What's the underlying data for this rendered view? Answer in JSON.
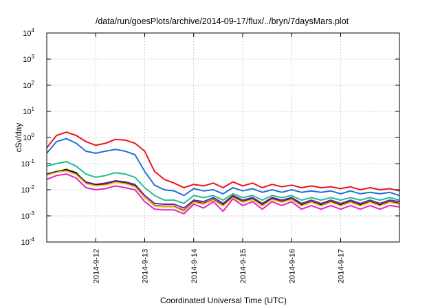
{
  "chart_data": {
    "type": "line",
    "title": "/data/run/goesPlots/archive/2014-09-17/flux/../bryn/7daysMars.plot",
    "xlabel": "Coordinated Universal Time (UTC)",
    "ylabel": "cSv/day",
    "yscale": "log",
    "ylim": [
      0.0001,
      10000
    ],
    "xlim": [
      0,
      7.2
    ],
    "y_ticks": [
      {
        "base": "10",
        "exp": "-4",
        "value": 0.0001
      },
      {
        "base": "10",
        "exp": "-3",
        "value": 0.001
      },
      {
        "base": "10",
        "exp": "-2",
        "value": 0.01
      },
      {
        "base": "10",
        "exp": "-1",
        "value": 0.1
      },
      {
        "base": "10",
        "exp": "0",
        "value": 1
      },
      {
        "base": "10",
        "exp": "1",
        "value": 10
      },
      {
        "base": "10",
        "exp": "2",
        "value": 100
      },
      {
        "base": "10",
        "exp": "3",
        "value": 1000
      },
      {
        "base": "10",
        "exp": "4",
        "value": 10000
      }
    ],
    "x_ticks": [
      {
        "label": "2014-9-12",
        "value": 1
      },
      {
        "label": "2014-9-13",
        "value": 2
      },
      {
        "label": "2014-9-14",
        "value": 3
      },
      {
        "label": "2014-9-15",
        "value": 4
      },
      {
        "label": "2014-9-16",
        "value": 5
      },
      {
        "label": "2014-9-17",
        "value": 6
      }
    ],
    "grid": true,
    "x": [
      0,
      0.2,
      0.4,
      0.6,
      0.8,
      1.0,
      1.2,
      1.4,
      1.6,
      1.8,
      2.0,
      2.2,
      2.4,
      2.6,
      2.8,
      3.0,
      3.2,
      3.4,
      3.6,
      3.8,
      4.0,
      4.2,
      4.4,
      4.6,
      4.8,
      5.0,
      5.2,
      5.4,
      5.6,
      5.8,
      6.0,
      6.2,
      6.4,
      6.6,
      6.8,
      7.0,
      7.2
    ],
    "series": [
      {
        "color": "#e8141b",
        "values": [
          0.4,
          1.2,
          1.6,
          1.2,
          0.7,
          0.5,
          0.6,
          0.85,
          0.8,
          0.6,
          0.3,
          0.05,
          0.025,
          0.018,
          0.012,
          0.016,
          0.014,
          0.018,
          0.012,
          0.02,
          0.014,
          0.018,
          0.012,
          0.016,
          0.013,
          0.015,
          0.012,
          0.014,
          0.012,
          0.013,
          0.011,
          0.013,
          0.01,
          0.012,
          0.01,
          0.011,
          0.009
        ]
      },
      {
        "color": "#1f6fe0",
        "values": [
          0.25,
          0.7,
          0.9,
          0.6,
          0.3,
          0.25,
          0.3,
          0.35,
          0.3,
          0.22,
          0.05,
          0.015,
          0.01,
          0.009,
          0.006,
          0.011,
          0.009,
          0.01,
          0.007,
          0.012,
          0.009,
          0.011,
          0.008,
          0.01,
          0.008,
          0.01,
          0.008,
          0.009,
          0.008,
          0.009,
          0.007,
          0.009,
          0.007,
          0.008,
          0.007,
          0.008,
          0.006
        ]
      },
      {
        "color": "#1bbf8c",
        "values": [
          0.08,
          0.1,
          0.12,
          0.08,
          0.04,
          0.03,
          0.035,
          0.045,
          0.04,
          0.03,
          0.012,
          0.006,
          0.004,
          0.004,
          0.003,
          0.006,
          0.005,
          0.006,
          0.004,
          0.007,
          0.005,
          0.006,
          0.004,
          0.006,
          0.005,
          0.006,
          0.004,
          0.005,
          0.004,
          0.005,
          0.004,
          0.005,
          0.004,
          0.005,
          0.004,
          0.005,
          0.004
        ]
      },
      {
        "color": "#7a1fa6",
        "values": [
          0.04,
          0.05,
          0.055,
          0.04,
          0.02,
          0.016,
          0.018,
          0.022,
          0.02,
          0.016,
          0.006,
          0.003,
          0.0028,
          0.0028,
          0.002,
          0.004,
          0.0035,
          0.005,
          0.003,
          0.006,
          0.004,
          0.005,
          0.003,
          0.005,
          0.004,
          0.005,
          0.003,
          0.004,
          0.003,
          0.004,
          0.003,
          0.004,
          0.003,
          0.004,
          0.003,
          0.004,
          0.0035
        ]
      },
      {
        "color": "#1a1a1a",
        "values": [
          0.038,
          0.048,
          0.06,
          0.045,
          0.018,
          0.015,
          0.016,
          0.02,
          0.018,
          0.014,
          0.005,
          0.0025,
          0.0023,
          0.0023,
          0.0016,
          0.0035,
          0.003,
          0.0042,
          0.0026,
          0.0055,
          0.0035,
          0.0045,
          0.0026,
          0.0045,
          0.0035,
          0.0045,
          0.0026,
          0.0035,
          0.0026,
          0.0035,
          0.0026,
          0.0035,
          0.0026,
          0.0035,
          0.0026,
          0.0035,
          0.003
        ]
      },
      {
        "color": "#f0c020",
        "values": [
          0.036,
          0.046,
          0.052,
          0.038,
          0.017,
          0.014,
          0.015,
          0.019,
          0.017,
          0.013,
          0.005,
          0.0024,
          0.0022,
          0.0022,
          0.0015,
          0.0033,
          0.0028,
          0.004,
          0.0024,
          0.005,
          0.0033,
          0.0042,
          0.0024,
          0.0042,
          0.0033,
          0.0042,
          0.0024,
          0.0033,
          0.0024,
          0.0033,
          0.0024,
          0.0033,
          0.0024,
          0.0033,
          0.0024,
          0.0033,
          0.0028
        ]
      },
      {
        "color": "#e620d0",
        "values": [
          0.025,
          0.035,
          0.04,
          0.028,
          0.012,
          0.01,
          0.011,
          0.014,
          0.012,
          0.01,
          0.0035,
          0.0018,
          0.0017,
          0.0017,
          0.0012,
          0.0028,
          0.002,
          0.0035,
          0.0015,
          0.0045,
          0.0025,
          0.0035,
          0.0018,
          0.0035,
          0.0025,
          0.0035,
          0.0018,
          0.0025,
          0.0018,
          0.0025,
          0.0018,
          0.0025,
          0.0018,
          0.0025,
          0.0018,
          0.0025,
          0.0022
        ]
      }
    ]
  }
}
